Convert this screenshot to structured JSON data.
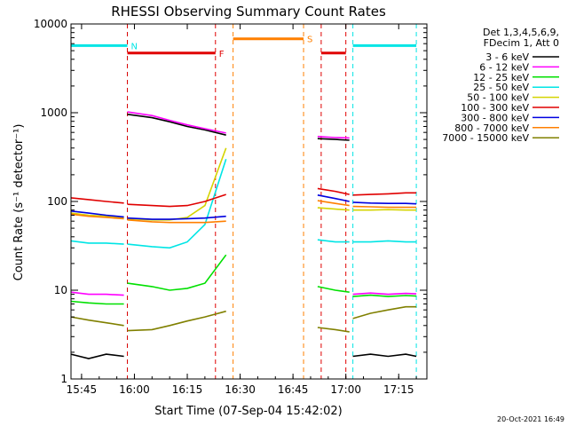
{
  "chart_data": {
    "type": "line",
    "title": "RHESSI Observing Summary Count Rates",
    "xlabel": "Start Time (07-Sep-04 15:42:02)",
    "ylabel": "Count Rate (s⁻¹ detector⁻¹)",
    "yscale": "log",
    "xlim": [
      "15:42",
      "17:23"
    ],
    "ylim": [
      1,
      10000
    ],
    "x_ticks": [
      "15:45",
      "16:00",
      "16:15",
      "16:30",
      "16:45",
      "17:00",
      "17:15"
    ],
    "y_ticks": [
      "1",
      "10",
      "100",
      "1000",
      "10000"
    ],
    "detector_note": [
      "Det 1,3,4,5,6,9,",
      "FDecim 1, Att 0"
    ],
    "timestamp": "20-Oct-2021 16:49",
    "flags": [
      {
        "label": "N",
        "color": "#00e5e5",
        "level": 5700,
        "spans": [
          [
            "15:42",
            "15:58"
          ],
          [
            "17:02",
            "17:20"
          ]
        ]
      },
      {
        "label": "F",
        "color": "#e00000",
        "level": 4700,
        "spans": [
          [
            "15:58",
            "16:23"
          ],
          [
            "16:53",
            "17:00"
          ]
        ]
      },
      {
        "label": "S",
        "color": "#ff7f00",
        "level": 6800,
        "spans": [
          [
            "16:28",
            "16:48"
          ]
        ]
      }
    ],
    "series": [
      {
        "name": "3 - 6 keV",
        "color": "#000000",
        "segments": [
          [
            [
              "15:42",
              1.9
            ],
            [
              "15:47",
              1.7
            ],
            [
              "15:52",
              1.9
            ],
            [
              "15:57",
              1.8
            ]
          ],
          [
            [
              "15:58",
              960
            ],
            [
              "16:05",
              880
            ],
            [
              "16:10",
              790
            ],
            [
              "16:15",
              700
            ],
            [
              "16:20",
              640
            ],
            [
              "16:26",
              560
            ]
          ],
          [
            [
              "16:52",
              510
            ],
            [
              "16:57",
              500
            ],
            [
              "17:01",
              490
            ]
          ],
          [
            [
              "17:02",
              1.8
            ],
            [
              "17:07",
              1.9
            ],
            [
              "17:12",
              1.8
            ],
            [
              "17:17",
              1.9
            ],
            [
              "17:20",
              1.8
            ]
          ]
        ]
      },
      {
        "name": "6 - 12 keV",
        "color": "#ff00ff",
        "segments": [
          [
            [
              "15:42",
              9.5
            ],
            [
              "15:47",
              9.0
            ],
            [
              "15:52",
              9.0
            ],
            [
              "15:57",
              8.8
            ]
          ],
          [
            [
              "15:58",
              1020
            ],
            [
              "16:05",
              930
            ],
            [
              "16:10",
              820
            ],
            [
              "16:15",
              730
            ],
            [
              "16:20",
              660
            ],
            [
              "16:26",
              590
            ]
          ],
          [
            [
              "16:52",
              540
            ],
            [
              "16:57",
              525
            ],
            [
              "17:01",
              520
            ]
          ],
          [
            [
              "17:02",
              9.0
            ],
            [
              "17:07",
              9.3
            ],
            [
              "17:12",
              9.0
            ],
            [
              "17:17",
              9.2
            ],
            [
              "17:20",
              9.1
            ]
          ]
        ]
      },
      {
        "name": "12 - 25 keV",
        "color": "#00e000",
        "segments": [
          [
            [
              "15:42",
              7.5
            ],
            [
              "15:47",
              7.2
            ],
            [
              "15:52",
              7.0
            ],
            [
              "15:57",
              7.0
            ]
          ],
          [
            [
              "15:58",
              12
            ],
            [
              "16:05",
              11
            ],
            [
              "16:10",
              10
            ],
            [
              "16:15",
              10.5
            ],
            [
              "16:20",
              12
            ],
            [
              "16:26",
              25
            ]
          ],
          [
            [
              "16:52",
              11
            ],
            [
              "16:57",
              10
            ],
            [
              "17:01",
              9.5
            ]
          ],
          [
            [
              "17:02",
              8.5
            ],
            [
              "17:07",
              8.8
            ],
            [
              "17:12",
              8.5
            ],
            [
              "17:17",
              8.7
            ],
            [
              "17:20",
              8.6
            ]
          ]
        ]
      },
      {
        "name": "25 - 50 keV",
        "color": "#00e5e5",
        "segments": [
          [
            [
              "15:42",
              36
            ],
            [
              "15:47",
              34
            ],
            [
              "15:52",
              34
            ],
            [
              "15:57",
              33
            ]
          ],
          [
            [
              "15:58",
              33
            ],
            [
              "16:05",
              31
            ],
            [
              "16:10",
              30
            ],
            [
              "16:15",
              35
            ],
            [
              "16:20",
              55
            ],
            [
              "16:26",
              300
            ]
          ],
          [
            [
              "16:52",
              37
            ],
            [
              "16:57",
              35
            ],
            [
              "17:01",
              35
            ]
          ],
          [
            [
              "17:02",
              35
            ],
            [
              "17:07",
              35
            ],
            [
              "17:12",
              36
            ],
            [
              "17:17",
              35
            ],
            [
              "17:20",
              35
            ]
          ]
        ]
      },
      {
        "name": "50 - 100 keV",
        "color": "#d4d400",
        "segments": [
          [
            [
              "15:42",
              74
            ],
            [
              "15:47",
              70
            ],
            [
              "15:52",
              68
            ],
            [
              "15:57",
              66
            ]
          ],
          [
            [
              "15:58",
              64
            ],
            [
              "16:05",
              62
            ],
            [
              "16:10",
              62
            ],
            [
              "16:15",
              66
            ],
            [
              "16:20",
              90
            ],
            [
              "16:26",
              400
            ]
          ],
          [
            [
              "16:52",
              85
            ],
            [
              "16:57",
              82
            ],
            [
              "17:01",
              80
            ]
          ],
          [
            [
              "17:02",
              80
            ],
            [
              "17:07",
              80
            ],
            [
              "17:12",
              81
            ],
            [
              "17:17",
              80
            ],
            [
              "17:20",
              80
            ]
          ]
        ]
      },
      {
        "name": "100 - 300 keV",
        "color": "#e00000",
        "segments": [
          [
            [
              "15:42",
              110
            ],
            [
              "15:47",
              105
            ],
            [
              "15:52",
              100
            ],
            [
              "15:57",
              96
            ]
          ],
          [
            [
              "15:58",
              93
            ],
            [
              "16:05",
              90
            ],
            [
              "16:10",
              88
            ],
            [
              "16:15",
              90
            ],
            [
              "16:20",
              100
            ],
            [
              "16:26",
              120
            ]
          ],
          [
            [
              "16:52",
              140
            ],
            [
              "16:57",
              130
            ],
            [
              "17:01",
              120
            ]
          ],
          [
            [
              "17:02",
              118
            ],
            [
              "17:07",
              120
            ],
            [
              "17:12",
              122
            ],
            [
              "17:17",
              125
            ],
            [
              "17:20",
              125
            ]
          ]
        ]
      },
      {
        "name": "300 - 800 keV",
        "color": "#0000e0",
        "segments": [
          [
            [
              "15:42",
              78
            ],
            [
              "15:47",
              74
            ],
            [
              "15:52",
              70
            ],
            [
              "15:57",
              67
            ]
          ],
          [
            [
              "15:58",
              65
            ],
            [
              "16:05",
              63
            ],
            [
              "16:10",
              63
            ],
            [
              "16:15",
              64
            ],
            [
              "16:20",
              65
            ],
            [
              "16:26",
              68
            ]
          ],
          [
            [
              "16:52",
              118
            ],
            [
              "16:57",
              108
            ],
            [
              "17:01",
              100
            ]
          ],
          [
            [
              "17:02",
              98
            ],
            [
              "17:07",
              96
            ],
            [
              "17:12",
              95
            ],
            [
              "17:17",
              95
            ],
            [
              "17:20",
              94
            ]
          ]
        ]
      },
      {
        "name": "800 - 7000 keV",
        "color": "#ff7f00",
        "segments": [
          [
            [
              "15:42",
              72
            ],
            [
              "15:47",
              68
            ],
            [
              "15:52",
              66
            ],
            [
              "15:57",
              64
            ]
          ],
          [
            [
              "15:58",
              62
            ],
            [
              "16:05",
              59
            ],
            [
              "16:10",
              58
            ],
            [
              "16:15",
              58
            ],
            [
              "16:20",
              58
            ],
            [
              "16:26",
              60
            ]
          ],
          [
            [
              "16:52",
              102
            ],
            [
              "16:57",
              95
            ],
            [
              "17:01",
              90
            ]
          ],
          [
            [
              "17:02",
              88
            ],
            [
              "17:07",
              87
            ],
            [
              "17:12",
              86
            ],
            [
              "17:17",
              86
            ],
            [
              "17:20",
              86
            ]
          ]
        ]
      },
      {
        "name": "7000 - 15000 keV",
        "color": "#808000",
        "segments": [
          [
            [
              "15:42",
              5.0
            ],
            [
              "15:47",
              4.6
            ],
            [
              "15:52",
              4.3
            ],
            [
              "15:57",
              4.0
            ]
          ],
          [
            [
              "15:58",
              3.5
            ],
            [
              "16:05",
              3.6
            ],
            [
              "16:10",
              4.0
            ],
            [
              "16:15",
              4.5
            ],
            [
              "16:20",
              5.0
            ],
            [
              "16:26",
              5.8
            ]
          ],
          [
            [
              "16:52",
              3.8
            ],
            [
              "16:57",
              3.6
            ],
            [
              "17:01",
              3.4
            ]
          ],
          [
            [
              "17:02",
              4.8
            ],
            [
              "17:07",
              5.5
            ],
            [
              "17:12",
              6.0
            ],
            [
              "17:17",
              6.5
            ],
            [
              "17:20",
              6.5
            ]
          ]
        ]
      }
    ]
  }
}
